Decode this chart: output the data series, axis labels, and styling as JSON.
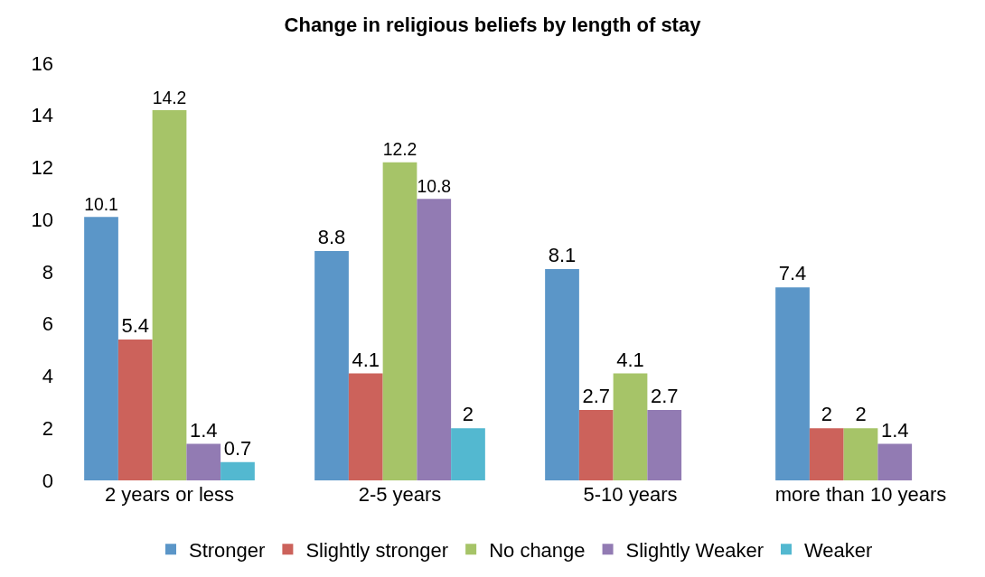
{
  "chart_data": {
    "type": "bar",
    "title": "Change in religious beliefs by length of stay",
    "categories": [
      "2 years or less",
      "2-5 years",
      "5-10 years",
      "more than 10 years"
    ],
    "series": [
      {
        "name": "Stronger",
        "color": "#5b96c8",
        "values": [
          10.1,
          8.8,
          8.1,
          7.4
        ]
      },
      {
        "name": "Slightly stronger",
        "color": "#cc625b",
        "values": [
          5.4,
          4.1,
          2.7,
          2
        ]
      },
      {
        "name": "No change",
        "color": "#a6c468",
        "values": [
          14.2,
          12.2,
          4.1,
          2
        ]
      },
      {
        "name": "Slightly Weaker",
        "color": "#927bb3",
        "values": [
          1.4,
          10.8,
          2.7,
          1.4
        ]
      },
      {
        "name": "Weaker",
        "color": "#53b8d0",
        "values": [
          0.7,
          2,
          null,
          null
        ]
      }
    ],
    "ylim": [
      0,
      16
    ],
    "yticks": [
      0,
      2,
      4,
      6,
      8,
      10,
      12,
      14,
      16
    ],
    "legend": "bottom",
    "data_labels": true
  }
}
